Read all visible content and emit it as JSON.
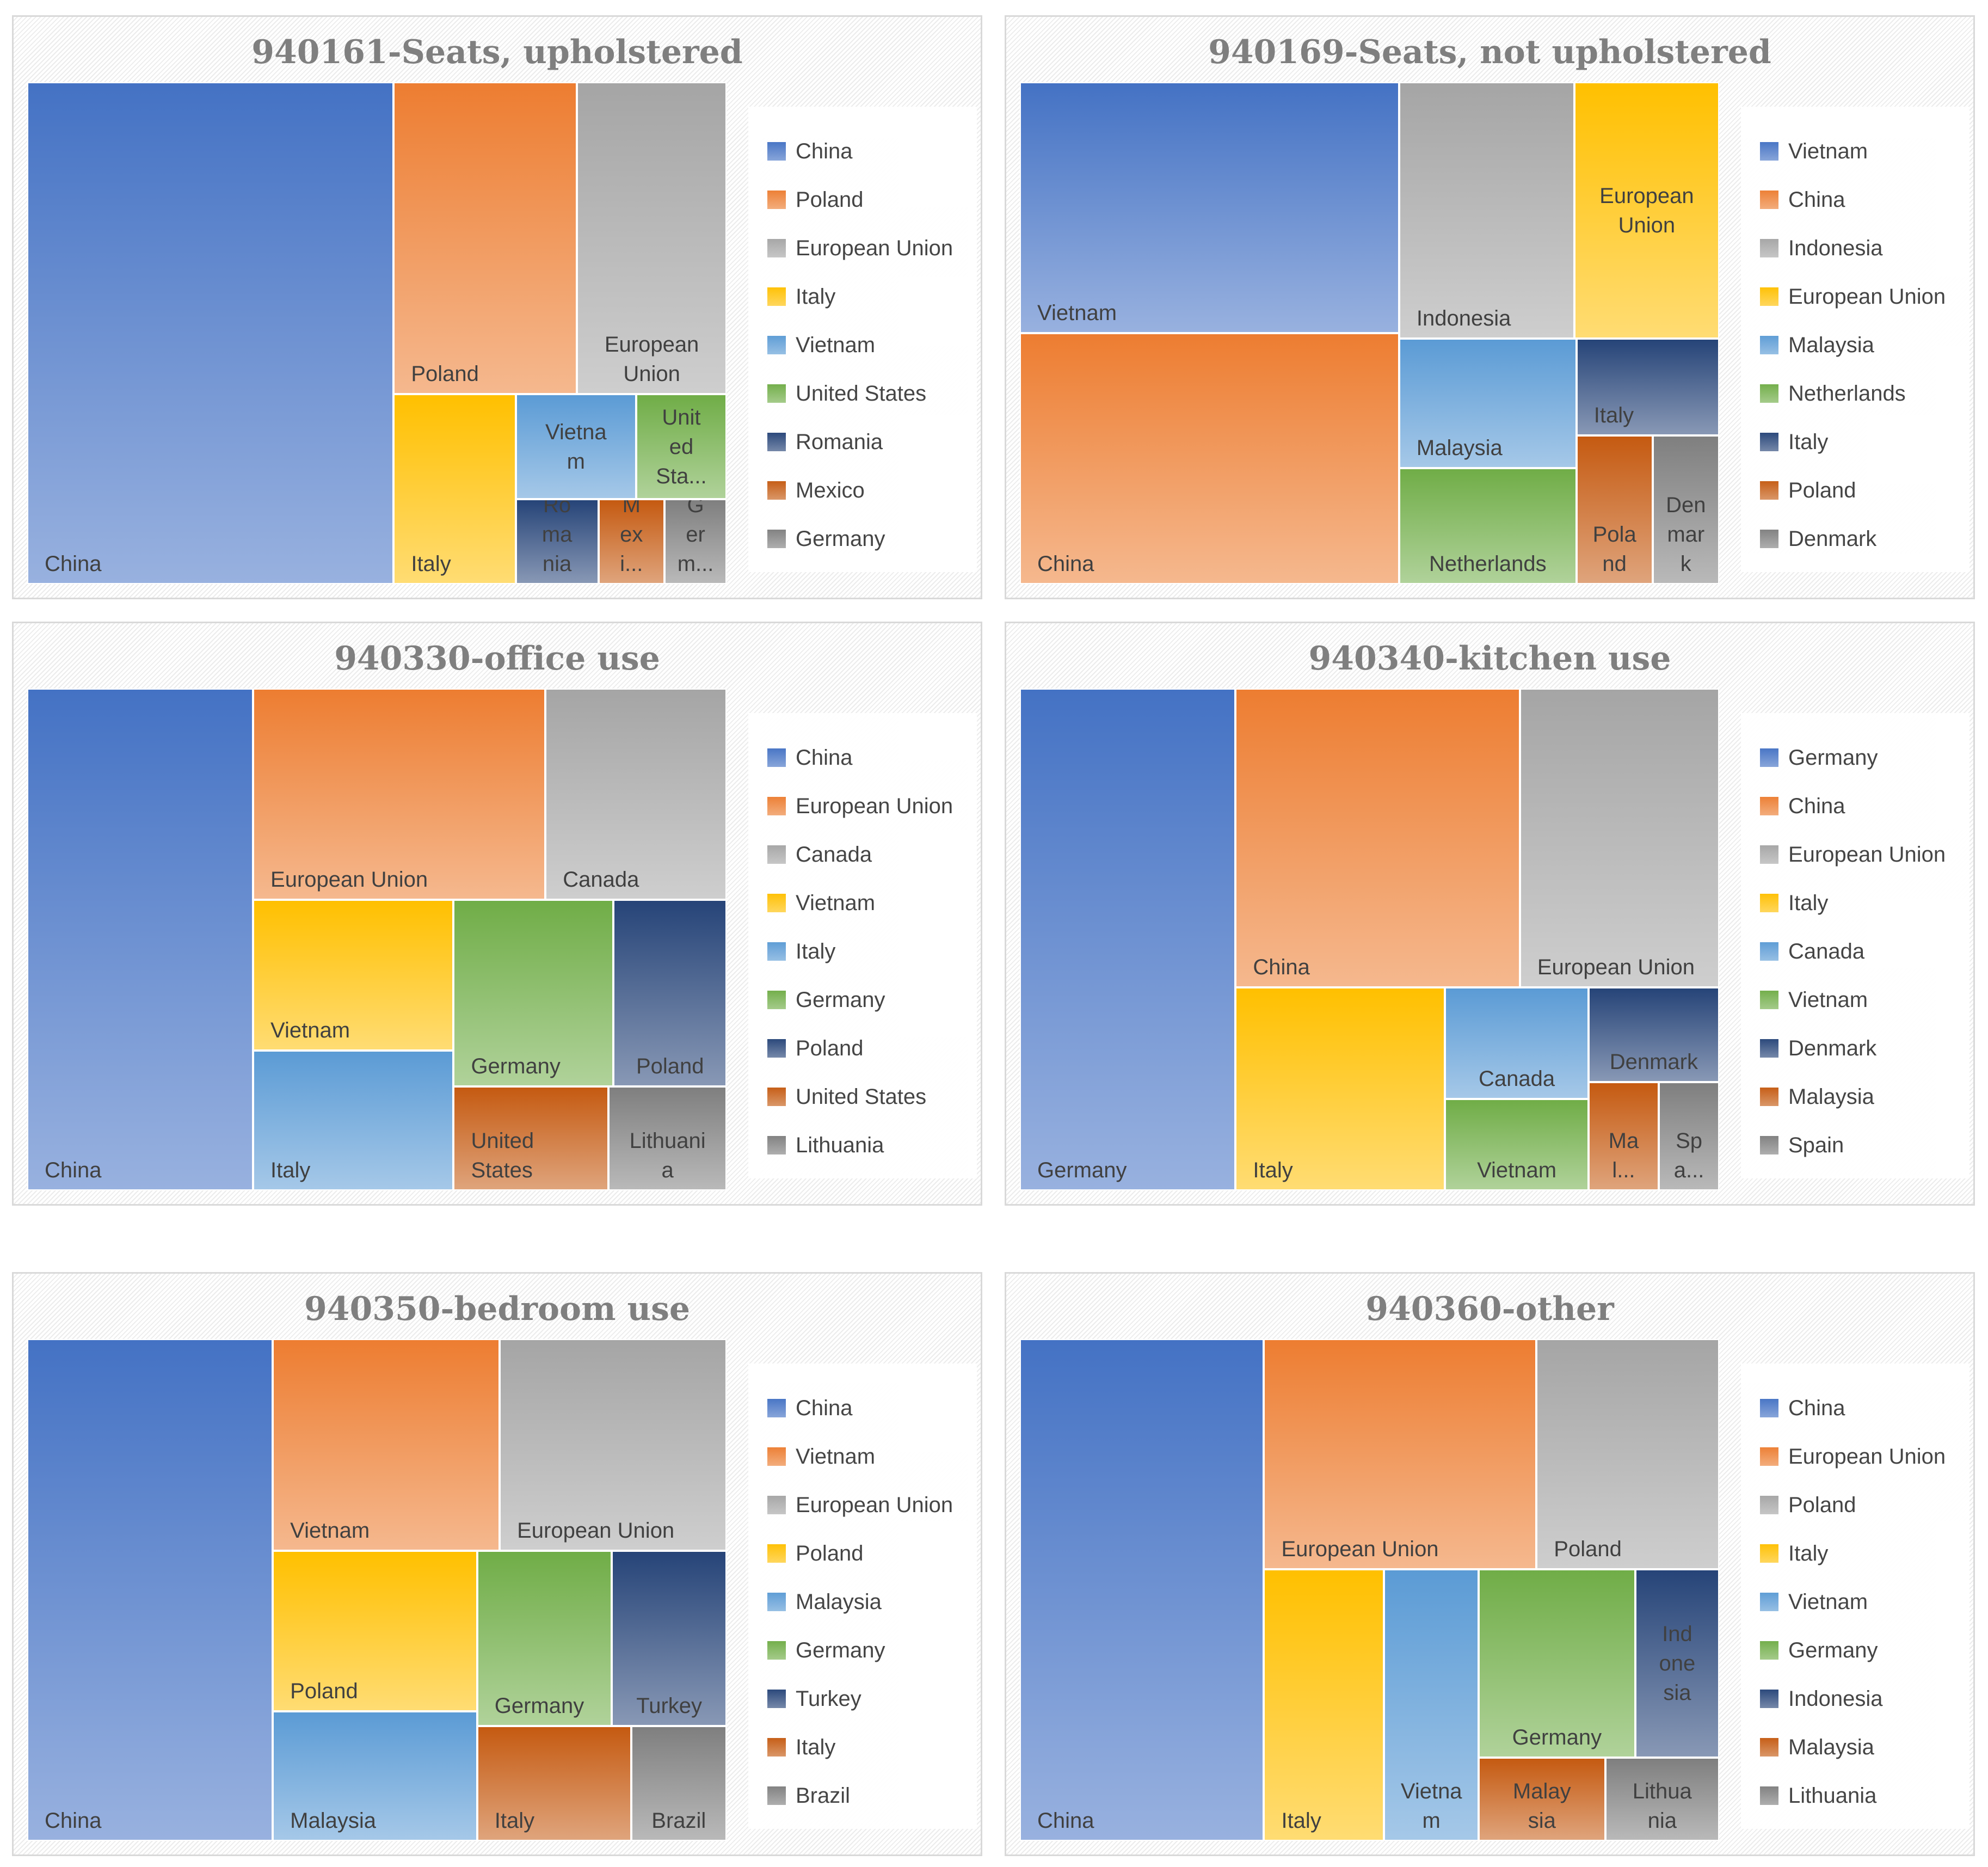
{
  "colors": [
    "#4472c4",
    "#ed7d31",
    "#a5a5a5",
    "#ffc000",
    "#5b9bd5",
    "#70ad47",
    "#264478",
    "#c55a11",
    "#7f7f7f"
  ],
  "chart_data": [
    {
      "type": "treemap",
      "title": "940161-Seats, upholstered",
      "categories": [
        "China",
        "Poland",
        "European Union",
        "Italy",
        "Vietnam",
        "United States",
        "Romania",
        "Mexico",
        "Germany"
      ],
      "display_labels": [
        "China",
        "Poland",
        "European\nUnion",
        "Italy",
        "Vietna\nm",
        "Unit\ned\nSta...",
        "Ro\nma\nnia",
        "M\nex\ni...",
        "G\ner\nm..."
      ],
      "values": [
        52.4,
        16.3,
        13.3,
        6.6,
        3.6,
        2.7,
        2.0,
        1.6,
        1.5
      ]
    },
    {
      "type": "treemap",
      "title": "940169-Seats, not upholstered",
      "categories": [
        "Vietnam",
        "China",
        "Indonesia",
        "European Union",
        "Malaysia",
        "Netherlands",
        "Italy",
        "Poland",
        "Denmark"
      ],
      "display_labels": [
        "Vietnam",
        "China",
        "Indonesia",
        "European\nUnion",
        "Malaysia",
        "Netherlands",
        "Italy",
        "Pola\nnd",
        "Den\nmar\nk"
      ],
      "values": [
        26.9,
        26.9,
        12.7,
        10.5,
        6.5,
        5.8,
        3.9,
        3.2,
        2.8
      ]
    },
    {
      "type": "treemap",
      "title": "940330-office use",
      "categories": [
        "China",
        "European Union",
        "Canada",
        "Vietnam",
        "Italy",
        "Germany",
        "Poland",
        "United States",
        "Lithuania"
      ],
      "display_labels": [
        "China",
        "European Union",
        "Canada",
        "Vietnam",
        "Italy",
        "Germany",
        "Poland",
        "United\nStates",
        "Lithuani\na"
      ],
      "values": [
        32.3,
        17.6,
        10.9,
        8.6,
        8.0,
        8.5,
        6.0,
        4.6,
        3.5
      ]
    },
    {
      "type": "treemap",
      "title": "940340-kitchen use",
      "categories": [
        "Germany",
        "China",
        "European Union",
        "Italy",
        "Canada",
        "Vietnam",
        "Denmark",
        "Malaysia",
        "Spain"
      ],
      "display_labels": [
        "Germany",
        "China",
        "European Union",
        "Italy",
        "Canada",
        "Vietnam",
        "Denmark",
        "Ma\nl...",
        "Sp\na..."
      ],
      "values": [
        29.8,
        23.4,
        16.4,
        11.7,
        4.4,
        3.6,
        3.4,
        2.1,
        1.8
      ]
    },
    {
      "type": "treemap",
      "title": "940350-bedroom use",
      "categories": [
        "China",
        "Vietnam",
        "European Union",
        "Poland",
        "Malaysia",
        "Germany",
        "Turkey",
        "Italy",
        "Brazil"
      ],
      "display_labels": [
        "China",
        "Vietnam",
        "European Union",
        "Poland",
        "Malaysia",
        "Germany",
        "Turkey",
        "Italy",
        "Brazil"
      ],
      "values": [
        34.9,
        13.6,
        13.6,
        9.3,
        7.5,
        6.7,
        5.7,
        5.0,
        3.1
      ]
    },
    {
      "type": "treemap",
      "title": "940360-other",
      "categories": [
        "China",
        "European Union",
        "Poland",
        "Italy",
        "Vietnam",
        "Germany",
        "Indonesia",
        "Malaysia",
        "Lithuania"
      ],
      "display_labels": [
        "China",
        "European Union",
        "Poland",
        "Italy",
        "Vietna\nm",
        "Germany",
        "Ind\none\nsia",
        "Malay\nsia",
        "Lithua\nnia"
      ],
      "values": [
        34.9,
        17.9,
        12.0,
        9.3,
        7.3,
        8.4,
        4.5,
        3.0,
        2.7
      ]
    }
  ]
}
